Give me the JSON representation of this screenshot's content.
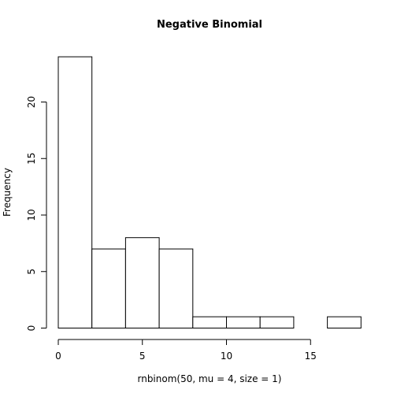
{
  "chart_data": {
    "type": "bar",
    "title": "Negative Binomial",
    "xlabel": "rnbinom(50, mu = 4, size = 1)",
    "ylabel": "Frequency",
    "bins": [
      {
        "from": 0,
        "to": 2,
        "count": 24
      },
      {
        "from": 2,
        "to": 4,
        "count": 7
      },
      {
        "from": 4,
        "to": 6,
        "count": 8
      },
      {
        "from": 6,
        "to": 8,
        "count": 7
      },
      {
        "from": 8,
        "to": 10,
        "count": 1
      },
      {
        "from": 10,
        "to": 12,
        "count": 1
      },
      {
        "from": 12,
        "to": 14,
        "count": 1
      },
      {
        "from": 14,
        "to": 16,
        "count": 0
      },
      {
        "from": 16,
        "to": 18,
        "count": 1
      }
    ],
    "xlim": [
      0,
      18
    ],
    "ylim": [
      0,
      24
    ],
    "x_ticks": [
      0,
      5,
      10,
      15
    ],
    "x_tick_labels": [
      "0",
      "5",
      "10",
      "15"
    ],
    "y_ticks": [
      0,
      5,
      10,
      15,
      20
    ],
    "y_tick_labels": [
      "0",
      "5",
      "10",
      "15",
      "20"
    ],
    "grid": false,
    "legend": "none",
    "bar_fill": "#ffffff",
    "bar_stroke": "#000000"
  }
}
